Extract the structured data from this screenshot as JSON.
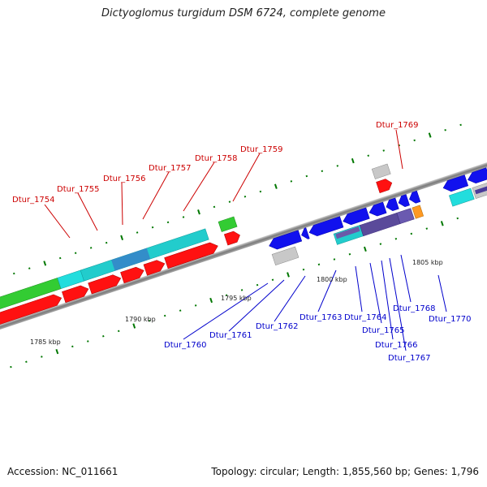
{
  "title": "Dictyoglomus turgidum DSM 6724, complete genome",
  "footer": {
    "accession": "Accession: NC_011661",
    "topology": "Topology: circular; Length: 1,855,560 bp; Genes: 1,796"
  },
  "colors": {
    "forward_label": "#cc0000",
    "reverse_label": "#0000cc",
    "backbone": "#888888",
    "tick": "#007700"
  },
  "scale_labels": [
    "1785 kbp",
    "1790 kbp",
    "1795 kbp",
    "1800 kbp",
    "1805 kbp"
  ],
  "forward_genes": [
    "Dtur_1754",
    "Dtur_1755",
    "Dtur_1756",
    "Dtur_1757",
    "Dtur_1758",
    "Dtur_1759",
    "Dtur_1769"
  ],
  "reverse_genes": [
    "Dtur_1760",
    "Dtur_1761",
    "Dtur_1762",
    "Dtur_1763",
    "Dtur_1764",
    "Dtur_1765",
    "Dtur_1766",
    "Dtur_1767",
    "Dtur_1768",
    "Dtur_1770"
  ]
}
